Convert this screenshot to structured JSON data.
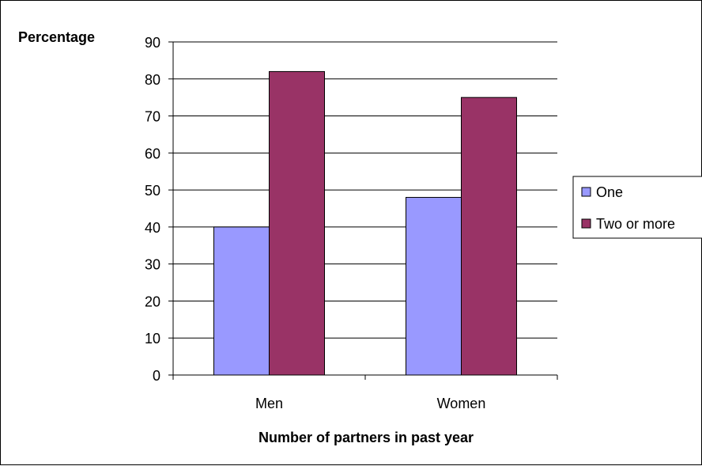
{
  "chart_data": {
    "type": "bar",
    "title": "",
    "ylabel": "Percentage",
    "xlabel": "Number of partners in past year",
    "categories": [
      "Men",
      "Women"
    ],
    "series": [
      {
        "name": "One",
        "values": [
          40,
          48
        ],
        "color": "#9999ff"
      },
      {
        "name": "Two or more",
        "values": [
          82,
          75
        ],
        "color": "#993366"
      }
    ],
    "ylim": [
      0,
      90
    ],
    "yticks": [
      0,
      10,
      20,
      30,
      40,
      50,
      60,
      70,
      80,
      90
    ],
    "grid": true,
    "legend": "right"
  }
}
